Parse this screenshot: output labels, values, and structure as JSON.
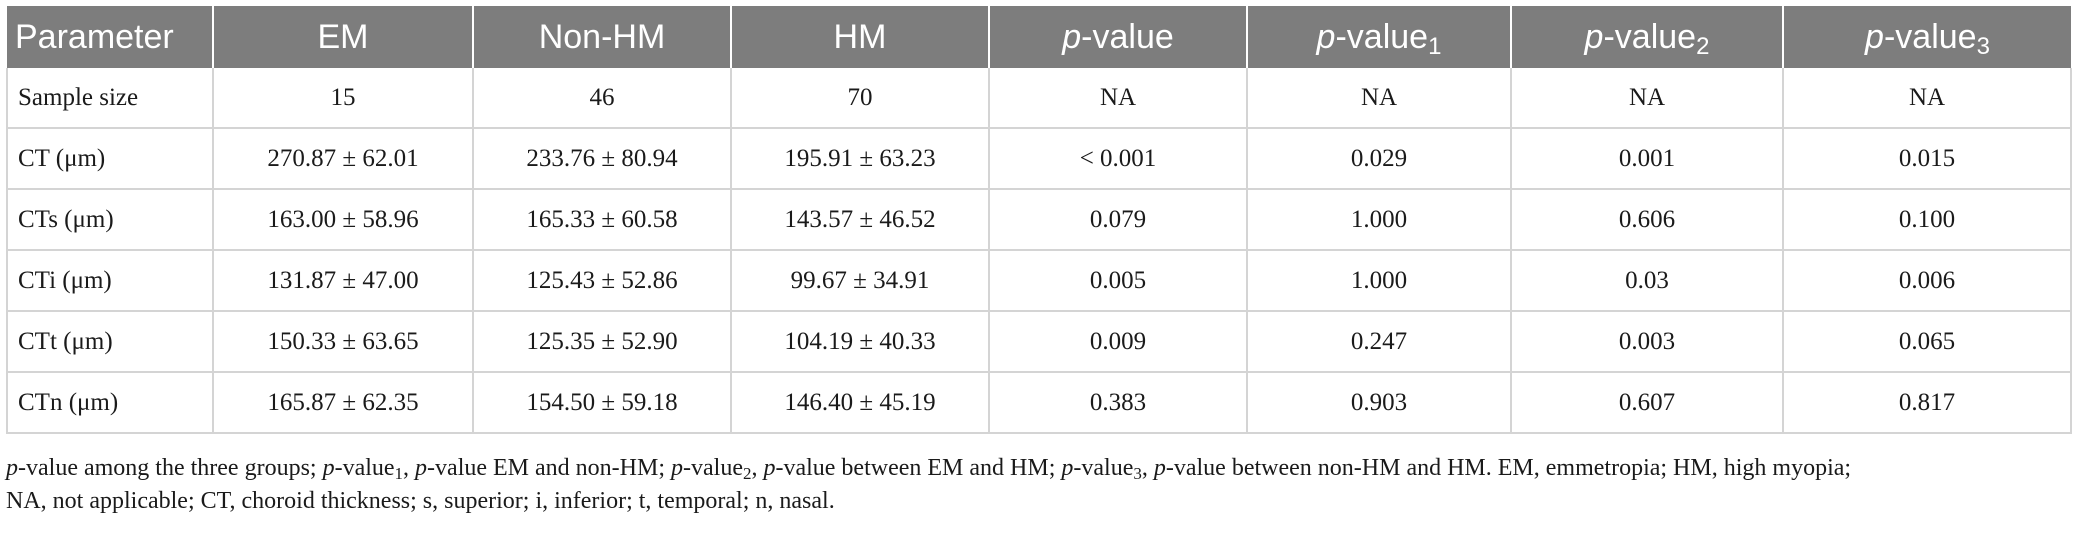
{
  "table": {
    "headers": [
      "Parameter",
      "EM",
      "Non-HM",
      "HM",
      "p-value",
      "p-value1",
      "p-value2",
      "p-value3"
    ],
    "header_parts": {
      "p": "p",
      "value_suffix": "-value",
      "sub1": "1",
      "sub2": "2",
      "sub3": "3"
    },
    "rows": [
      [
        "Sample size",
        "15",
        "46",
        "70",
        "NA",
        "NA",
        "NA",
        "NA"
      ],
      [
        "CT (μm)",
        "270.87 ± 62.01",
        "233.76 ± 80.94",
        "195.91 ± 63.23",
        "< 0.001",
        "0.029",
        "0.001",
        "0.015"
      ],
      [
        "CTs (μm)",
        "163.00 ± 58.96",
        "165.33 ± 60.58",
        "143.57 ± 46.52",
        "0.079",
        "1.000",
        "0.606",
        "0.100"
      ],
      [
        "CTi (μm)",
        "131.87 ± 47.00",
        "125.43 ± 52.86",
        "99.67 ± 34.91",
        "0.005",
        "1.000",
        "0.03",
        "0.006"
      ],
      [
        "CTt (μm)",
        "150.33 ± 63.65",
        "125.35 ± 52.90",
        "104.19 ± 40.33",
        "0.009",
        "0.247",
        "0.003",
        "0.065"
      ],
      [
        "CTn (μm)",
        "165.87 ± 62.35",
        "154.50 ± 59.18",
        "146.40 ± 45.19",
        "0.383",
        "0.903",
        "0.607",
        "0.817"
      ]
    ]
  },
  "footnote": {
    "p": "p",
    "seg_a": "-value among the three groups; ",
    "seg_b": "-value",
    "sub1": "1",
    "seg_c": ", ",
    "seg_d": "-value EM and non-HM; ",
    "seg_e": "-value",
    "sub2": "2",
    "seg_f": ", ",
    "seg_g": "-value between EM and HM; ",
    "seg_h": "-value",
    "sub3": "3",
    "seg_i": ", ",
    "seg_j": "-value between non-HM and HM. EM, emmetropia; HM, high myopia;",
    "line2": "NA, not applicable; CT, choroid thickness; s, superior; i, inferior; t, temporal; n, nasal."
  }
}
